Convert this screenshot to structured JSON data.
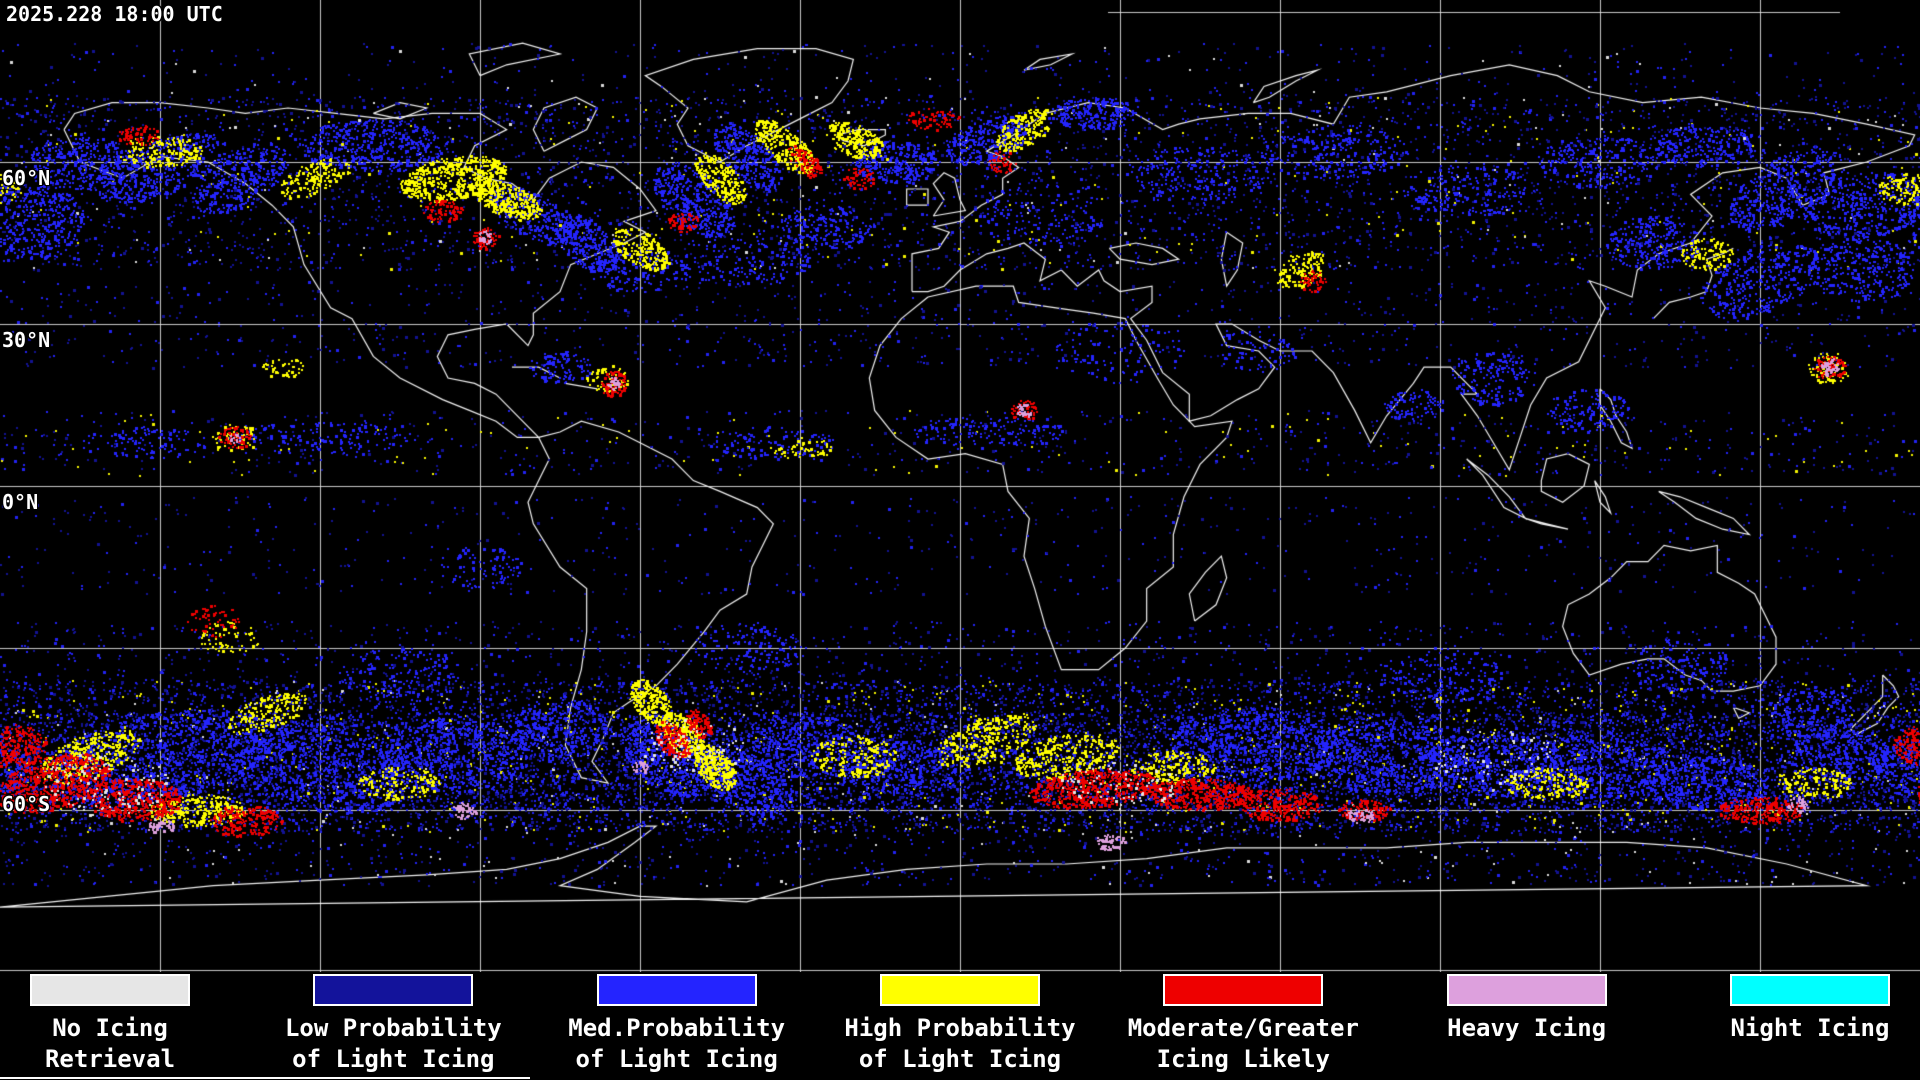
{
  "header": {
    "timestamp": "2025.228 18:00 UTC"
  },
  "map": {
    "lat_labels": [
      {
        "text": "60°N"
      },
      {
        "text": "30°N"
      },
      {
        "text": "0°N"
      },
      {
        "text": "60°S"
      }
    ],
    "graticule_color": "#e0e0e0",
    "coastline_color": "#ffffff",
    "background_color": "#000000"
  },
  "legend": {
    "items": [
      {
        "id": "no-icing",
        "line1": "No Icing",
        "line2": "Retrieval",
        "color": "#e6e6e6"
      },
      {
        "id": "low-prob",
        "line1": "Low Probability",
        "line2": "of Light Icing",
        "color": "#13139b"
      },
      {
        "id": "med-prob",
        "line1": "Med.Probability",
        "line2": "of Light Icing",
        "color": "#2424ff"
      },
      {
        "id": "high-prob",
        "line1": "High Probability",
        "line2": "of Light Icing",
        "color": "#ffff00"
      },
      {
        "id": "moderate",
        "line1": "Moderate/Greater",
        "line2": "Icing Likely",
        "color": "#ee0000"
      },
      {
        "id": "heavy",
        "line1": "Heavy Icing",
        "line2": "",
        "color": "#dda0dd"
      },
      {
        "id": "night",
        "line1": "Night Icing",
        "line2": "",
        "color": "#00ffff"
      }
    ]
  },
  "palette": {
    "no_icing": "#e6e6e6",
    "low_prob": "#13139b",
    "med_prob": "#2424ff",
    "high_prob": "#ffff00",
    "moderate_icing": "#ee0000",
    "heavy_icing": "#dda0dd",
    "night_icing": "#00ffff"
  }
}
